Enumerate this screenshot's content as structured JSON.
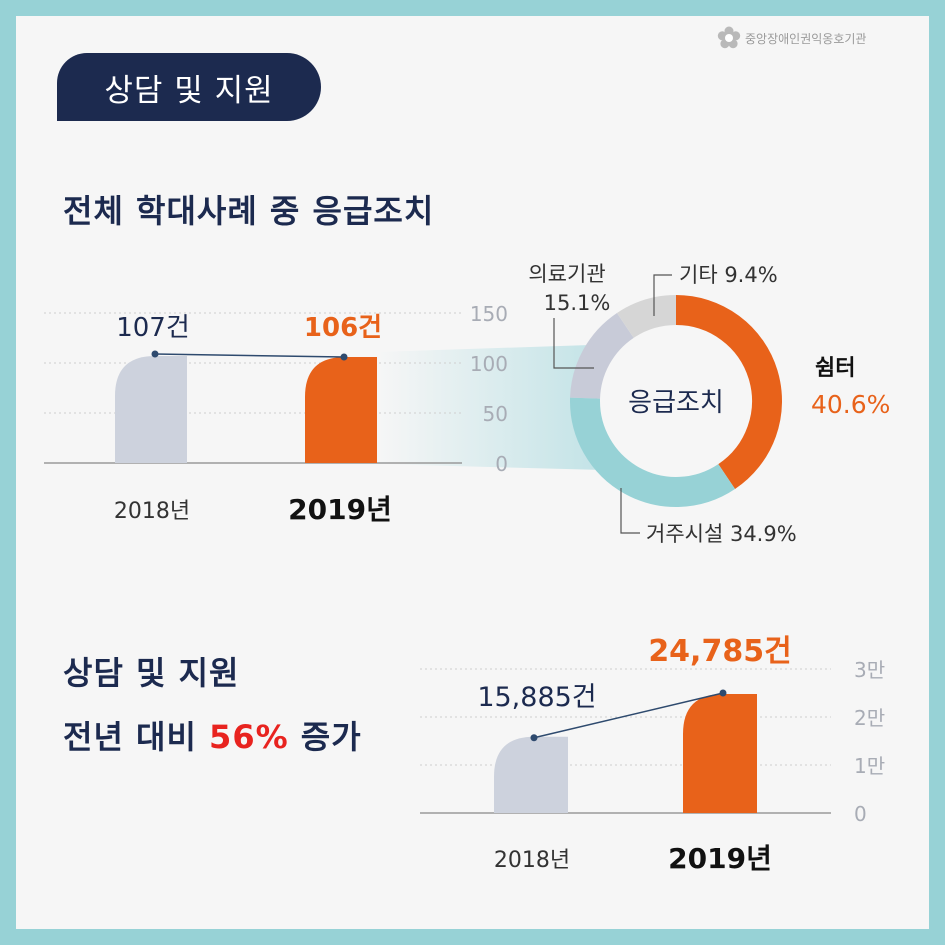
{
  "org_logo": "중앙장애인권익옹호기관",
  "section_badge": "상담 및 지원",
  "heading1": "전체 학대사례 중 응급조치",
  "heading2_line1": "상담 및 지원",
  "heading2_line2_pre": "전년 대비",
  "heading2_line2_highlight": "56%",
  "heading2_line2_post": "증가",
  "colors": {
    "accent": "#e8621a",
    "highlight": "#e8231f",
    "navy": "#1c2a4f",
    "gray_bar": "#cdd2dd",
    "teal": "#97d2d6"
  },
  "chart_data": [
    {
      "type": "bar",
      "categories": [
        "2018년",
        "2019년"
      ],
      "values": [
        107,
        106
      ],
      "value_labels": [
        "107건",
        "106건"
      ],
      "yticks": [
        "0",
        "50",
        "100",
        "150"
      ],
      "ylim": [
        0,
        150
      ]
    },
    {
      "type": "pie",
      "center_label": "응급조치",
      "slices": [
        {
          "label": "쉼터",
          "value": 40.6,
          "value_label": "40.6%",
          "color": "#e8621a"
        },
        {
          "label": "거주시설",
          "value": 34.9,
          "value_label": "34.9%",
          "color": "#97d2d6"
        },
        {
          "label": "의료기관",
          "value": 15.1,
          "value_label": "15.1%",
          "color": "#c8cbd8"
        },
        {
          "label": "기타",
          "value": 9.4,
          "value_label": "9.4%",
          "color": "#d6d6d6"
        }
      ]
    },
    {
      "type": "bar",
      "categories": [
        "2018년",
        "2019년"
      ],
      "values": [
        15885,
        24785
      ],
      "value_labels": [
        "15,885건",
        "24,785건"
      ],
      "yticks": [
        "0",
        "1만",
        "2만",
        "3만"
      ],
      "ylim": [
        0,
        30000
      ]
    }
  ]
}
